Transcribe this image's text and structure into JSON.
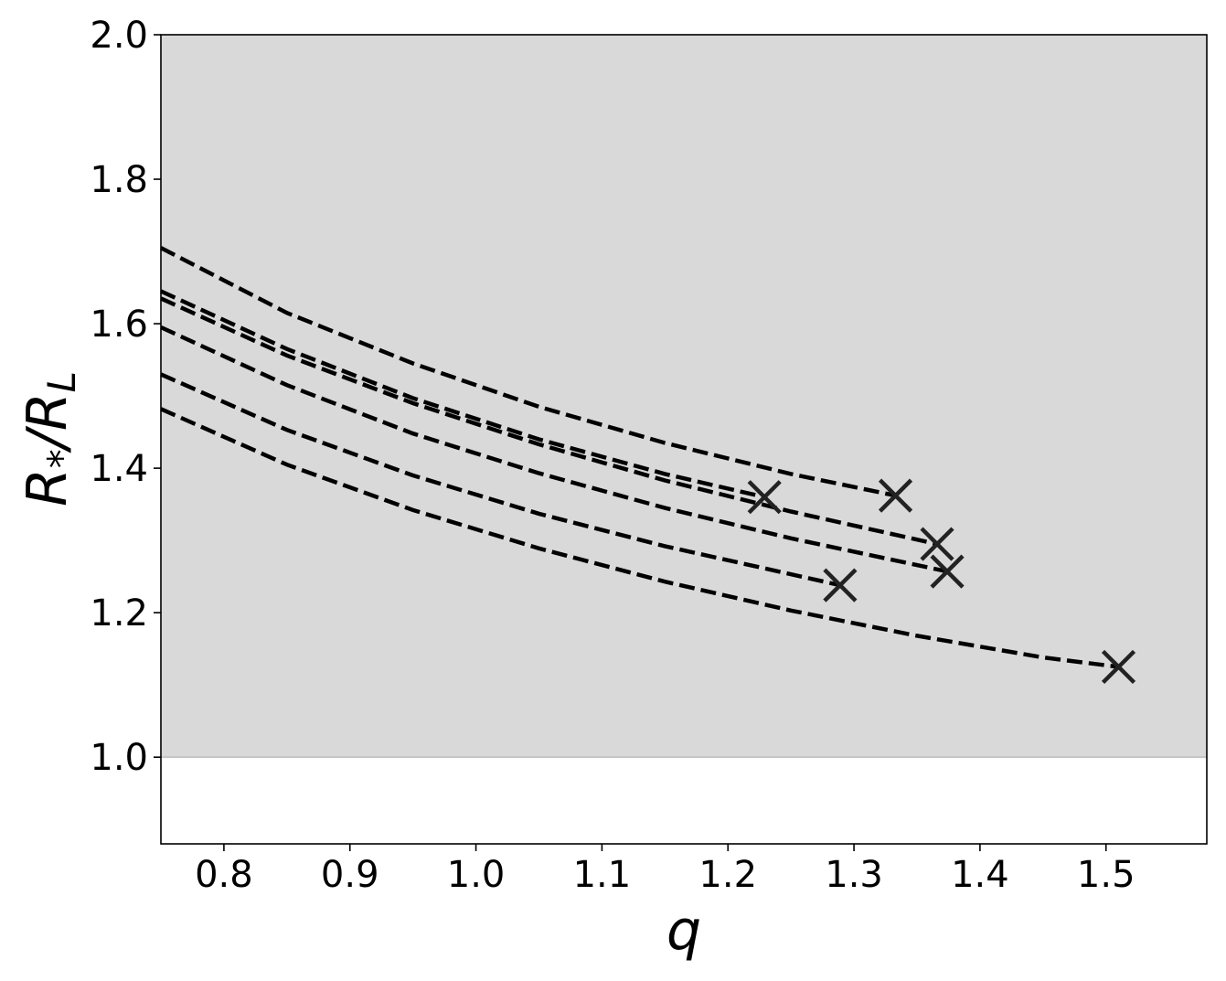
{
  "chart_data": {
    "type": "line",
    "title": "",
    "xlabel": "q",
    "ylabel_main": "R",
    "ylabel_sub1": "*",
    "ylabel_mid": "/R",
    "ylabel_sub2": "L",
    "xlim": [
      0.75,
      1.58
    ],
    "ylim": [
      0.88,
      2.0
    ],
    "xticks": [
      0.8,
      0.9,
      1.0,
      1.1,
      1.2,
      1.3,
      1.4,
      1.5
    ],
    "xtick_labels": [
      "0.8",
      "0.9",
      "1.0",
      "1.1",
      "1.2",
      "1.3",
      "1.4",
      "1.5"
    ],
    "yticks": [
      1.0,
      1.2,
      1.4,
      1.6,
      1.8,
      2.0
    ],
    "ytick_labels": [
      "1.0",
      "1.2",
      "1.4",
      "1.6",
      "1.8",
      "2.0"
    ],
    "shaded_region": {
      "y_from": 1.0,
      "y_to": 2.0,
      "color": "#d9d9d9"
    },
    "line_style": "dashed",
    "line_color": "#000000",
    "marker": "x",
    "marker_color": "#222222",
    "grid": false,
    "series": [
      {
        "x": [
          0.75,
          0.85,
          0.95,
          1.05,
          1.15,
          1.25,
          1.333
        ],
        "y": [
          1.705,
          1.615,
          1.545,
          1.485,
          1.435,
          1.392,
          1.362
        ],
        "end": {
          "x": 1.333,
          "y": 1.362
        }
      },
      {
        "x": [
          0.75,
          0.85,
          0.95,
          1.05,
          1.15,
          1.229
        ],
        "y": [
          1.645,
          1.565,
          1.497,
          1.44,
          1.392,
          1.36
        ],
        "end": {
          "x": 1.229,
          "y": 1.36
        }
      },
      {
        "x": [
          0.75,
          0.85,
          0.95,
          1.05,
          1.15,
          1.25,
          1.366
        ],
        "y": [
          1.635,
          1.556,
          1.49,
          1.433,
          1.383,
          1.34,
          1.295
        ],
        "end": {
          "x": 1.366,
          "y": 1.295
        }
      },
      {
        "x": [
          0.75,
          0.85,
          0.95,
          1.05,
          1.15,
          1.25,
          1.374
        ],
        "y": [
          1.595,
          1.515,
          1.448,
          1.393,
          1.345,
          1.303,
          1.257
        ],
        "end": {
          "x": 1.374,
          "y": 1.257
        }
      },
      {
        "x": [
          0.75,
          0.85,
          0.95,
          1.05,
          1.15,
          1.289
        ],
        "y": [
          1.53,
          1.453,
          1.39,
          1.337,
          1.292,
          1.238
        ],
        "end": {
          "x": 1.289,
          "y": 1.238
        }
      },
      {
        "x": [
          0.75,
          0.85,
          0.95,
          1.05,
          1.15,
          1.25,
          1.35,
          1.45,
          1.51
        ],
        "y": [
          1.482,
          1.405,
          1.342,
          1.289,
          1.243,
          1.203,
          1.168,
          1.138,
          1.125
        ],
        "end": {
          "x": 1.51,
          "y": 1.125
        }
      }
    ]
  }
}
